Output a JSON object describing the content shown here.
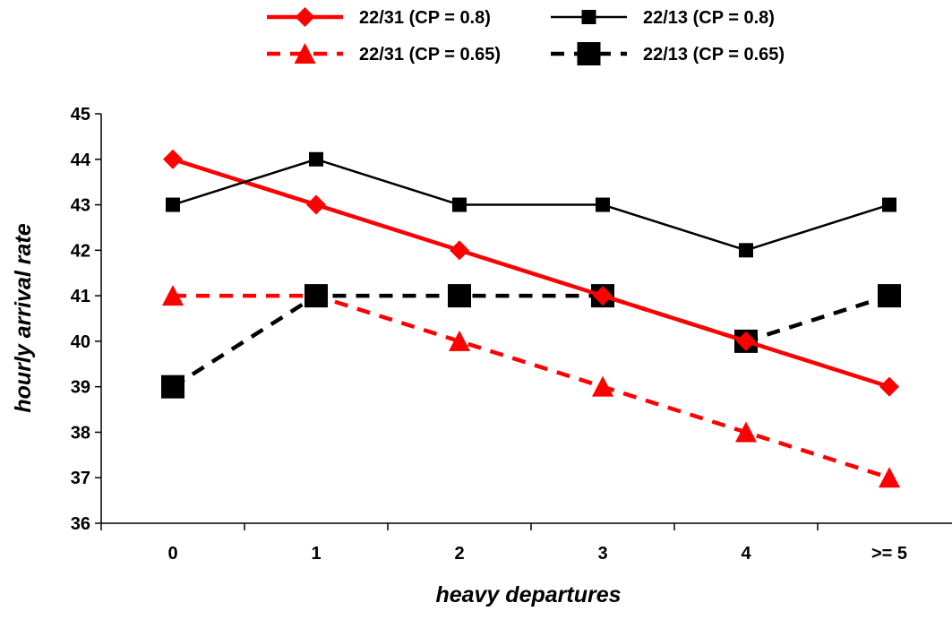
{
  "chart_data": {
    "type": "line",
    "xlabel": "heavy departures",
    "ylabel": "hourly arrival rate",
    "categories": [
      "0",
      "1",
      "2",
      "3",
      "4",
      ">= 5"
    ],
    "ylim": [
      36,
      45
    ],
    "yticks": [
      36,
      37,
      38,
      39,
      40,
      41,
      42,
      43,
      44,
      45
    ],
    "grid": false,
    "legend_position": "top",
    "series": [
      {
        "name": "22/31 (CP = 0.8)",
        "values": [
          44,
          43,
          42,
          41,
          40,
          39
        ],
        "color": "#ff0000",
        "line_style": "solid",
        "marker": "diamond"
      },
      {
        "name": "22/13 (CP = 0.8)",
        "values": [
          43,
          44,
          43,
          43,
          42,
          43
        ],
        "color": "#000000",
        "line_style": "solid",
        "marker": "square"
      },
      {
        "name": "22/31 (CP = 0.65)",
        "values": [
          41,
          41,
          40,
          39,
          38,
          37
        ],
        "color": "#ff0000",
        "line_style": "dashed",
        "marker": "triangle"
      },
      {
        "name": "22/13 (CP = 0.65)",
        "values": [
          39,
          41,
          41,
          41,
          40,
          41
        ],
        "color": "#000000",
        "line_style": "dashed",
        "marker": "big-square"
      }
    ]
  }
}
